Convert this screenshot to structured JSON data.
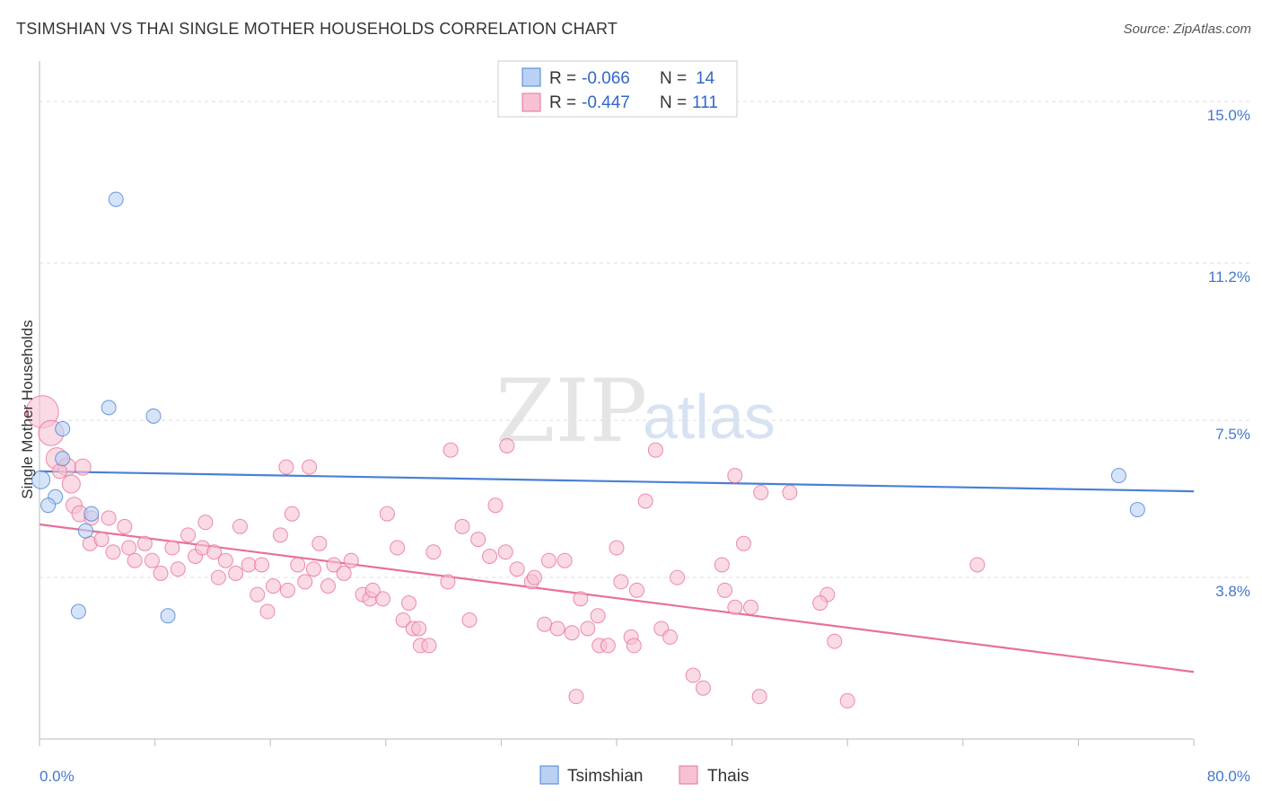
{
  "title": "TSIMSHIAN VS THAI SINGLE MOTHER HOUSEHOLDS CORRELATION CHART",
  "source": "Source: ZipAtlas.com",
  "watermark": {
    "zip": "ZIP",
    "atlas": "atlas"
  },
  "legend": {
    "r_label": "R =",
    "n_label": "N =",
    "rows": [
      {
        "r": "-0.066",
        "n": "14"
      },
      {
        "r": "-0.447",
        "n": "111"
      }
    ]
  },
  "bottom_legend": [
    "Tsimshian",
    "Thais"
  ],
  "chart_data": {
    "type": "scatter",
    "title": "TSIMSHIAN VS THAI SINGLE MOTHER HOUSEHOLDS CORRELATION CHART",
    "xlabel": "",
    "ylabel": "Single Mother Households",
    "xlim": [
      0,
      80
    ],
    "ylim": [
      0,
      15.7
    ],
    "y_ticks": [
      3.8,
      7.5,
      11.2,
      15.0
    ],
    "y_tick_labels": [
      "3.8%",
      "7.5%",
      "11.2%",
      "15.0%"
    ],
    "x_tick_labels": [
      "0.0%",
      "80.0%"
    ],
    "grid": "horizontal dashed",
    "legend_position": "top-center",
    "colors": {
      "tsimshian": "#4a80d4",
      "thais": "#e8709a",
      "tsimshian_fill": "#b9d2f3",
      "thais_fill": "#f7c1d2"
    },
    "series": [
      {
        "name": "Tsimshian",
        "r": -0.066,
        "n": 14,
        "trend": {
          "x": [
            0,
            80
          ],
          "y": [
            6.3,
            5.83
          ]
        },
        "points": [
          [
            0.1,
            6.1,
            10
          ],
          [
            1.1,
            5.7,
            8
          ],
          [
            0.6,
            5.5,
            8
          ],
          [
            1.6,
            7.3,
            8
          ],
          [
            1.6,
            6.6,
            8
          ],
          [
            3.6,
            5.3,
            8
          ],
          [
            3.2,
            4.9,
            8
          ],
          [
            2.7,
            3.0,
            8
          ],
          [
            8.9,
            2.9,
            8
          ],
          [
            4.8,
            7.8,
            8
          ],
          [
            7.9,
            7.6,
            8
          ],
          [
            5.3,
            12.7,
            8
          ],
          [
            74.8,
            6.2,
            8
          ],
          [
            76.1,
            5.4,
            8
          ]
        ]
      },
      {
        "name": "Thais",
        "r": -0.447,
        "n": 111,
        "trend": {
          "x": [
            0,
            80
          ],
          "y": [
            5.05,
            1.58
          ]
        },
        "points": [
          [
            0.2,
            7.7,
            18
          ],
          [
            0.8,
            7.2,
            14
          ],
          [
            1.2,
            6.6,
            12
          ],
          [
            1.9,
            6.4,
            10
          ],
          [
            2.2,
            6.0,
            10
          ],
          [
            1.4,
            6.3,
            8
          ],
          [
            3.0,
            6.4,
            9
          ],
          [
            2.4,
            5.5,
            9
          ],
          [
            2.8,
            5.3,
            9
          ],
          [
            3.6,
            5.2,
            8
          ],
          [
            4.8,
            5.2,
            8
          ],
          [
            5.9,
            5.0,
            8
          ],
          [
            3.5,
            4.6,
            8
          ],
          [
            4.3,
            4.7,
            8
          ],
          [
            5.1,
            4.4,
            8
          ],
          [
            6.2,
            4.5,
            8
          ],
          [
            7.3,
            4.6,
            8
          ],
          [
            6.6,
            4.2,
            8
          ],
          [
            7.8,
            4.2,
            8
          ],
          [
            8.4,
            3.9,
            8
          ],
          [
            9.2,
            4.5,
            8
          ],
          [
            9.6,
            4.0,
            8
          ],
          [
            10.3,
            4.8,
            8
          ],
          [
            10.8,
            4.3,
            8
          ],
          [
            11.3,
            4.5,
            8
          ],
          [
            11.5,
            5.1,
            8
          ],
          [
            12.1,
            4.4,
            8
          ],
          [
            12.4,
            3.8,
            8
          ],
          [
            12.9,
            4.2,
            8
          ],
          [
            13.6,
            3.9,
            8
          ],
          [
            13.9,
            5.0,
            8
          ],
          [
            14.5,
            4.1,
            8
          ],
          [
            15.1,
            3.4,
            8
          ],
          [
            15.4,
            4.1,
            8
          ],
          [
            15.8,
            3.0,
            8
          ],
          [
            16.2,
            3.6,
            8
          ],
          [
            16.7,
            4.8,
            8
          ],
          [
            17.2,
            3.5,
            8
          ],
          [
            17.5,
            5.3,
            8
          ],
          [
            17.9,
            4.1,
            8
          ],
          [
            18.4,
            3.7,
            8
          ],
          [
            19.0,
            4.0,
            8
          ],
          [
            17.1,
            6.4,
            8
          ],
          [
            18.7,
            6.4,
            8
          ],
          [
            19.4,
            4.6,
            8
          ],
          [
            20.0,
            3.6,
            8
          ],
          [
            20.4,
            4.1,
            8
          ],
          [
            21.1,
            3.9,
            8
          ],
          [
            21.6,
            4.2,
            8
          ],
          [
            22.4,
            3.4,
            8
          ],
          [
            22.9,
            3.3,
            8
          ],
          [
            23.8,
            3.3,
            8
          ],
          [
            23.1,
            3.5,
            8
          ],
          [
            24.1,
            5.3,
            8
          ],
          [
            24.8,
            4.5,
            8
          ],
          [
            25.2,
            2.8,
            8
          ],
          [
            25.9,
            2.6,
            8
          ],
          [
            26.4,
            2.2,
            8
          ],
          [
            26.3,
            2.6,
            8
          ],
          [
            27.0,
            2.2,
            8
          ],
          [
            25.6,
            3.2,
            8
          ],
          [
            27.3,
            4.4,
            8
          ],
          [
            28.3,
            3.7,
            8
          ],
          [
            28.5,
            6.8,
            8
          ],
          [
            29.3,
            5.0,
            8
          ],
          [
            29.8,
            2.8,
            8
          ],
          [
            30.4,
            4.7,
            8
          ],
          [
            31.2,
            4.3,
            8
          ],
          [
            31.6,
            5.5,
            8
          ],
          [
            32.3,
            4.4,
            8
          ],
          [
            32.4,
            6.9,
            8
          ],
          [
            33.1,
            4.0,
            8
          ],
          [
            34.1,
            3.7,
            8
          ],
          [
            34.3,
            3.8,
            8
          ],
          [
            35.0,
            2.7,
            8
          ],
          [
            35.3,
            4.2,
            8
          ],
          [
            35.9,
            2.6,
            8
          ],
          [
            36.4,
            4.2,
            8
          ],
          [
            36.9,
            2.5,
            8
          ],
          [
            37.5,
            3.3,
            8
          ],
          [
            37.2,
            1.0,
            8
          ],
          [
            38.7,
            2.9,
            8
          ],
          [
            38.0,
            2.6,
            8
          ],
          [
            38.8,
            2.2,
            8
          ],
          [
            39.4,
            2.2,
            8
          ],
          [
            40.0,
            4.5,
            8
          ],
          [
            41.0,
            2.4,
            8
          ],
          [
            41.2,
            2.2,
            8
          ],
          [
            40.3,
            3.7,
            8
          ],
          [
            41.4,
            3.5,
            8
          ],
          [
            42.0,
            5.6,
            8
          ],
          [
            42.7,
            6.8,
            8
          ],
          [
            43.1,
            2.6,
            8
          ],
          [
            43.7,
            2.4,
            8
          ],
          [
            44.2,
            3.8,
            8
          ],
          [
            45.3,
            1.5,
            8
          ],
          [
            46.0,
            1.2,
            8
          ],
          [
            47.3,
            4.1,
            8
          ],
          [
            48.2,
            6.2,
            8
          ],
          [
            48.8,
            4.6,
            8
          ],
          [
            47.5,
            3.5,
            8
          ],
          [
            49.3,
            3.1,
            8
          ],
          [
            49.9,
            1.0,
            8
          ],
          [
            50.0,
            5.8,
            8
          ],
          [
            52.0,
            5.8,
            8
          ],
          [
            54.6,
            3.4,
            8
          ],
          [
            54.1,
            3.2,
            8
          ],
          [
            55.1,
            2.3,
            8
          ],
          [
            65.0,
            4.1,
            8
          ],
          [
            56.0,
            0.9,
            8
          ],
          [
            48.2,
            3.1,
            8
          ]
        ]
      }
    ]
  }
}
